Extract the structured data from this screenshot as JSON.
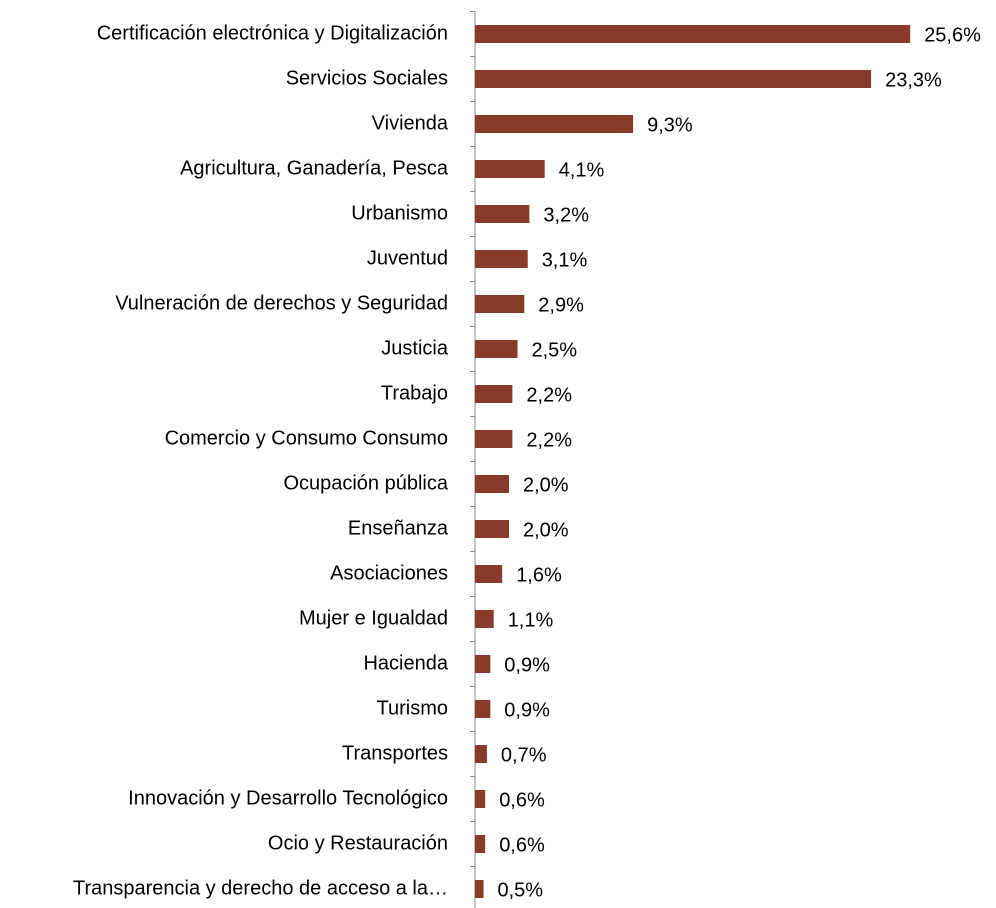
{
  "chart_data": {
    "type": "bar",
    "orientation": "horizontal",
    "categories": [
      "Certificación electrónica y Digitalización",
      "Servicios Sociales",
      "Vivienda",
      "Agricultura, Ganadería, Pesca",
      "Urbanismo",
      "Juventud",
      "Vulneración de derechos y Seguridad",
      "Justicia",
      "Trabajo",
      "Comercio y Consumo Consumo",
      "Ocupación pública",
      "Enseñanza",
      "Asociaciones",
      "Mujer e Igualdad",
      "Hacienda",
      "Turismo",
      "Transportes",
      "Innovación y Desarrollo Tecnológico",
      "Ocio y Restauración",
      "Transparencia y derecho de acceso a la…"
    ],
    "values": [
      25.6,
      23.3,
      9.3,
      4.1,
      3.2,
      3.1,
      2.9,
      2.5,
      2.2,
      2.2,
      2.0,
      2.0,
      1.6,
      1.1,
      0.9,
      0.9,
      0.7,
      0.6,
      0.6,
      0.5
    ],
    "value_labels": [
      "25,6%",
      "23,3%",
      "9,3%",
      "4,1%",
      "3,2%",
      "3,1%",
      "2,9%",
      "2,5%",
      "2,2%",
      "2,2%",
      "2,0%",
      "2,0%",
      "1,6%",
      "1,1%",
      "0,9%",
      "0,9%",
      "0,7%",
      "0,6%",
      "0,6%",
      "0,5%"
    ],
    "color": "#893a2b",
    "xlim": [
      0,
      30
    ]
  }
}
